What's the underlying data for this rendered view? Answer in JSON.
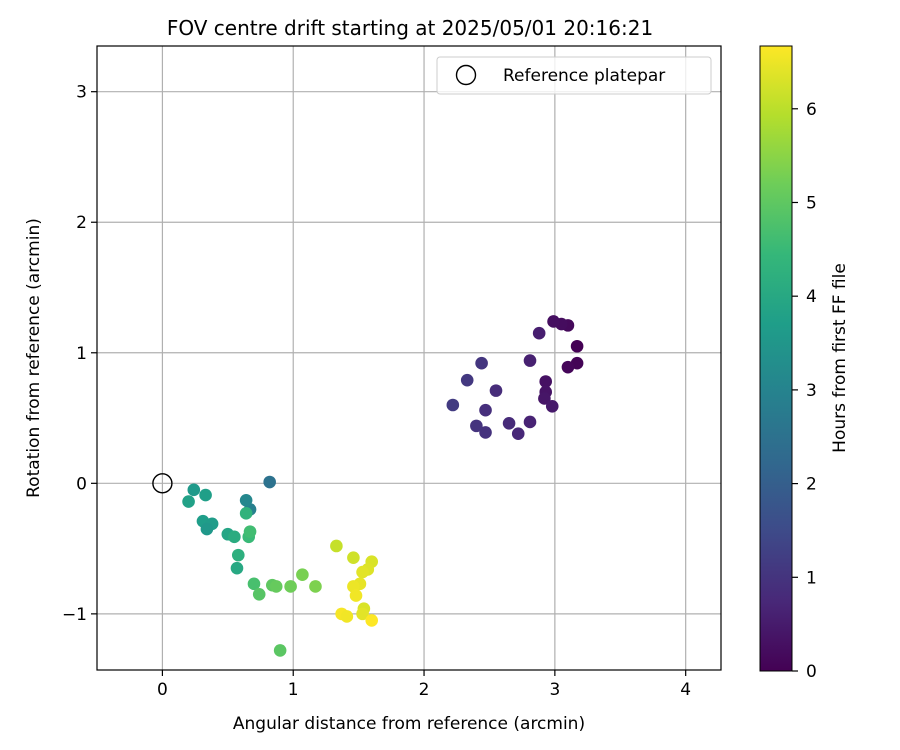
{
  "chart_data": {
    "type": "scatter",
    "title": "FOV centre drift starting at 2025/05/01 20:16:21",
    "xlabel": "Angular distance from reference (arcmin)",
    "ylabel": "Rotation from reference (arcmin)",
    "xlim": [
      -0.5,
      4.27
    ],
    "ylim": [
      -1.43,
      3.35
    ],
    "xticks": [
      0,
      1,
      2,
      3,
      4
    ],
    "xtick_labels": [
      "0",
      "1",
      "2",
      "3",
      "4"
    ],
    "yticks": [
      -1,
      0,
      1,
      2,
      3
    ],
    "ytick_labels": [
      "−1",
      "0",
      "1",
      "2",
      "3"
    ],
    "grid": true,
    "legend": {
      "position": "top-right",
      "entries": [
        "Reference platepar"
      ]
    },
    "reference_point": {
      "x": 0,
      "y": 0,
      "name": "Reference platepar"
    },
    "colorbar": {
      "label": "Hours from first FF file",
      "min": 0,
      "max": 6.67,
      "ticks": [
        0,
        1,
        2,
        3,
        4,
        5,
        6
      ],
      "tick_labels": [
        "0",
        "1",
        "2",
        "3",
        "4",
        "5",
        "6"
      ],
      "colormap": "viridis"
    },
    "points": [
      {
        "x": 3.17,
        "y": 1.05,
        "h": 0.0
      },
      {
        "x": 3.17,
        "y": 0.92,
        "h": 0.05
      },
      {
        "x": 3.1,
        "y": 0.89,
        "h": 0.1
      },
      {
        "x": 3.1,
        "y": 1.21,
        "h": 0.15
      },
      {
        "x": 3.05,
        "y": 1.22,
        "h": 0.2
      },
      {
        "x": 2.99,
        "y": 1.24,
        "h": 0.25
      },
      {
        "x": 2.93,
        "y": 0.78,
        "h": 0.3
      },
      {
        "x": 2.93,
        "y": 0.7,
        "h": 0.35
      },
      {
        "x": 2.92,
        "y": 0.65,
        "h": 0.4
      },
      {
        "x": 2.98,
        "y": 0.59,
        "h": 0.45
      },
      {
        "x": 2.88,
        "y": 1.15,
        "h": 0.55
      },
      {
        "x": 2.81,
        "y": 0.94,
        "h": 0.6
      },
      {
        "x": 2.81,
        "y": 0.47,
        "h": 0.65
      },
      {
        "x": 2.72,
        "y": 0.38,
        "h": 0.75
      },
      {
        "x": 2.65,
        "y": 0.46,
        "h": 0.8
      },
      {
        "x": 2.55,
        "y": 0.71,
        "h": 0.85
      },
      {
        "x": 2.47,
        "y": 0.56,
        "h": 0.9
      },
      {
        "x": 2.47,
        "y": 0.39,
        "h": 0.95
      },
      {
        "x": 2.4,
        "y": 0.44,
        "h": 1.0
      },
      {
        "x": 2.44,
        "y": 0.92,
        "h": 1.05
      },
      {
        "x": 2.33,
        "y": 0.79,
        "h": 1.1
      },
      {
        "x": 2.22,
        "y": 0.6,
        "h": 1.15
      },
      {
        "x": 0.82,
        "y": 0.01,
        "h": 2.5
      },
      {
        "x": 0.67,
        "y": -0.2,
        "h": 2.9
      },
      {
        "x": 0.64,
        "y": -0.13,
        "h": 3.1
      },
      {
        "x": 0.24,
        "y": -0.05,
        "h": 3.6
      },
      {
        "x": 0.33,
        "y": -0.09,
        "h": 3.75
      },
      {
        "x": 0.2,
        "y": -0.14,
        "h": 3.8
      },
      {
        "x": 0.31,
        "y": -0.29,
        "h": 3.7
      },
      {
        "x": 0.38,
        "y": -0.31,
        "h": 3.65
      },
      {
        "x": 0.34,
        "y": -0.35,
        "h": 3.55
      },
      {
        "x": 0.5,
        "y": -0.39,
        "h": 3.9
      },
      {
        "x": 0.55,
        "y": -0.41,
        "h": 4.1
      },
      {
        "x": 0.64,
        "y": -0.23,
        "h": 4.3
      },
      {
        "x": 0.66,
        "y": -0.41,
        "h": 4.5
      },
      {
        "x": 0.67,
        "y": -0.37,
        "h": 4.6
      },
      {
        "x": 0.58,
        "y": -0.55,
        "h": 4.2
      },
      {
        "x": 0.57,
        "y": -0.65,
        "h": 4.0
      },
      {
        "x": 0.7,
        "y": -0.77,
        "h": 4.7
      },
      {
        "x": 0.74,
        "y": -0.85,
        "h": 4.9
      },
      {
        "x": 0.84,
        "y": -0.78,
        "h": 5.0
      },
      {
        "x": 0.87,
        "y": -0.79,
        "h": 5.1
      },
      {
        "x": 0.98,
        "y": -0.79,
        "h": 5.2
      },
      {
        "x": 1.07,
        "y": -0.7,
        "h": 5.3
      },
      {
        "x": 1.17,
        "y": -0.79,
        "h": 5.35
      },
      {
        "x": 0.9,
        "y": -1.28,
        "h": 4.95
      },
      {
        "x": 1.33,
        "y": -0.48,
        "h": 6.1
      },
      {
        "x": 1.46,
        "y": -0.57,
        "h": 6.2
      },
      {
        "x": 1.6,
        "y": -0.6,
        "h": 6.3
      },
      {
        "x": 1.57,
        "y": -0.66,
        "h": 6.35
      },
      {
        "x": 1.53,
        "y": -0.68,
        "h": 6.4
      },
      {
        "x": 1.51,
        "y": -0.77,
        "h": 6.45
      },
      {
        "x": 1.46,
        "y": -0.79,
        "h": 6.5
      },
      {
        "x": 1.48,
        "y": -0.86,
        "h": 6.55
      },
      {
        "x": 1.54,
        "y": -0.96,
        "h": 6.3
      },
      {
        "x": 1.53,
        "y": -1.0,
        "h": 6.4
      },
      {
        "x": 1.37,
        "y": -1.0,
        "h": 6.6
      },
      {
        "x": 1.41,
        "y": -1.02,
        "h": 6.55
      },
      {
        "x": 1.6,
        "y": -1.05,
        "h": 6.67
      }
    ]
  }
}
